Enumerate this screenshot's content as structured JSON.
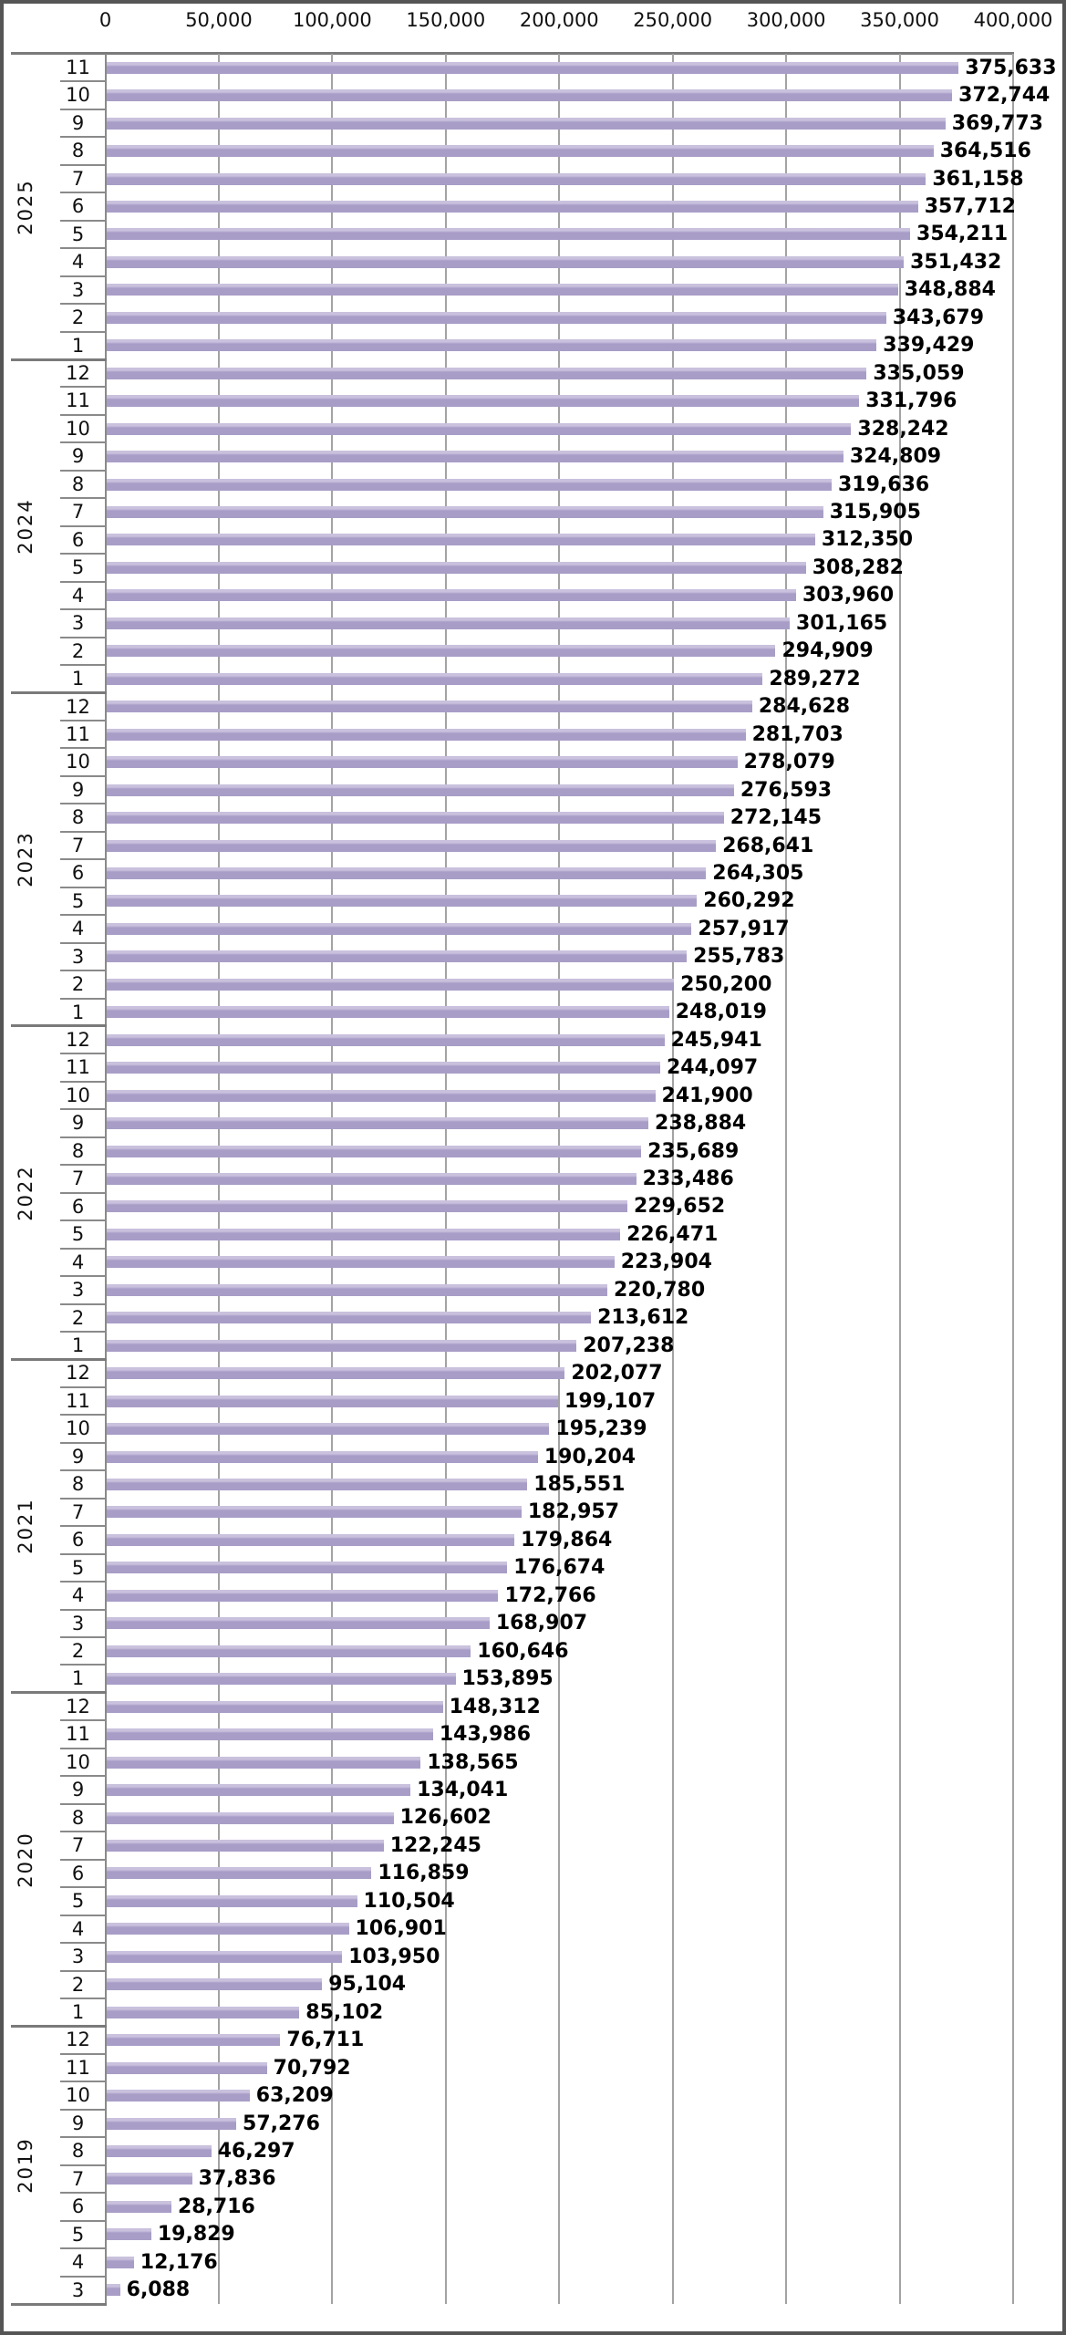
{
  "chart_data": {
    "type": "bar",
    "orientation": "horizontal",
    "title": "",
    "xlabel": "",
    "ylabel": "",
    "x_axis": {
      "position": "top",
      "min": 0,
      "max": 400000,
      "tick_step": 50000,
      "tick_labels": [
        "0",
        "50,000",
        "100,000",
        "150,000",
        "200,000",
        "250,000",
        "300,000",
        "350,000",
        "400,000"
      ],
      "grid": true
    },
    "y_axis": {
      "outer_level": "year",
      "inner_level": "month",
      "order": "newest-first"
    },
    "legend": "none",
    "bar_color": "#a89dc7",
    "gridline_color": "#a3a3a3",
    "frame_color": "#555555",
    "groups": [
      {
        "year": "2025",
        "rows": [
          {
            "month": "11",
            "value": 375633,
            "label": "375,633"
          },
          {
            "month": "10",
            "value": 372744,
            "label": "372,744"
          },
          {
            "month": "9",
            "value": 369773,
            "label": "369,773"
          },
          {
            "month": "8",
            "value": 364516,
            "label": "364,516"
          },
          {
            "month": "7",
            "value": 361158,
            "label": "361,158"
          },
          {
            "month": "6",
            "value": 357712,
            "label": "357,712"
          },
          {
            "month": "5",
            "value": 354211,
            "label": "354,211"
          },
          {
            "month": "4",
            "value": 351432,
            "label": "351,432"
          },
          {
            "month": "3",
            "value": 348884,
            "label": "348,884"
          },
          {
            "month": "2",
            "value": 343679,
            "label": "343,679"
          },
          {
            "month": "1",
            "value": 339429,
            "label": "339,429"
          }
        ]
      },
      {
        "year": "2024",
        "rows": [
          {
            "month": "12",
            "value": 335059,
            "label": "335,059"
          },
          {
            "month": "11",
            "value": 331796,
            "label": "331,796"
          },
          {
            "month": "10",
            "value": 328242,
            "label": "328,242"
          },
          {
            "month": "9",
            "value": 324809,
            "label": "324,809"
          },
          {
            "month": "8",
            "value": 319636,
            "label": "319,636"
          },
          {
            "month": "7",
            "value": 315905,
            "label": "315,905"
          },
          {
            "month": "6",
            "value": 312350,
            "label": "312,350"
          },
          {
            "month": "5",
            "value": 308282,
            "label": "308,282"
          },
          {
            "month": "4",
            "value": 303960,
            "label": "303,960"
          },
          {
            "month": "3",
            "value": 301165,
            "label": "301,165"
          },
          {
            "month": "2",
            "value": 294909,
            "label": "294,909"
          },
          {
            "month": "1",
            "value": 289272,
            "label": "289,272"
          }
        ]
      },
      {
        "year": "2023",
        "rows": [
          {
            "month": "12",
            "value": 284628,
            "label": "284,628"
          },
          {
            "month": "11",
            "value": 281703,
            "label": "281,703"
          },
          {
            "month": "10",
            "value": 278079,
            "label": "278,079"
          },
          {
            "month": "9",
            "value": 276593,
            "label": "276,593"
          },
          {
            "month": "8",
            "value": 272145,
            "label": "272,145"
          },
          {
            "month": "7",
            "value": 268641,
            "label": "268,641"
          },
          {
            "month": "6",
            "value": 264305,
            "label": "264,305"
          },
          {
            "month": "5",
            "value": 260292,
            "label": "260,292"
          },
          {
            "month": "4",
            "value": 257917,
            "label": "257,917"
          },
          {
            "month": "3",
            "value": 255783,
            "label": "255,783"
          },
          {
            "month": "2",
            "value": 250200,
            "label": "250,200"
          },
          {
            "month": "1",
            "value": 248019,
            "label": "248,019"
          }
        ]
      },
      {
        "year": "2022",
        "rows": [
          {
            "month": "12",
            "value": 245941,
            "label": "245,941"
          },
          {
            "month": "11",
            "value": 244097,
            "label": "244,097"
          },
          {
            "month": "10",
            "value": 241900,
            "label": "241,900"
          },
          {
            "month": "9",
            "value": 238884,
            "label": "238,884"
          },
          {
            "month": "8",
            "value": 235689,
            "label": "235,689"
          },
          {
            "month": "7",
            "value": 233486,
            "label": "233,486"
          },
          {
            "month": "6",
            "value": 229652,
            "label": "229,652"
          },
          {
            "month": "5",
            "value": 226471,
            "label": "226,471"
          },
          {
            "month": "4",
            "value": 223904,
            "label": "223,904"
          },
          {
            "month": "3",
            "value": 220780,
            "label": "220,780"
          },
          {
            "month": "2",
            "value": 213612,
            "label": "213,612"
          },
          {
            "month": "1",
            "value": 207238,
            "label": "207,238"
          }
        ]
      },
      {
        "year": "2021",
        "rows": [
          {
            "month": "12",
            "value": 202077,
            "label": "202,077"
          },
          {
            "month": "11",
            "value": 199107,
            "label": "199,107"
          },
          {
            "month": "10",
            "value": 195239,
            "label": "195,239"
          },
          {
            "month": "9",
            "value": 190204,
            "label": "190,204"
          },
          {
            "month": "8",
            "value": 185551,
            "label": "185,551"
          },
          {
            "month": "7",
            "value": 182957,
            "label": "182,957"
          },
          {
            "month": "6",
            "value": 179864,
            "label": "179,864"
          },
          {
            "month": "5",
            "value": 176674,
            "label": "176,674"
          },
          {
            "month": "4",
            "value": 172766,
            "label": "172,766"
          },
          {
            "month": "3",
            "value": 168907,
            "label": "168,907"
          },
          {
            "month": "2",
            "value": 160646,
            "label": "160,646"
          },
          {
            "month": "1",
            "value": 153895,
            "label": "153,895"
          }
        ]
      },
      {
        "year": "2020",
        "rows": [
          {
            "month": "12",
            "value": 148312,
            "label": "148,312"
          },
          {
            "month": "11",
            "value": 143986,
            "label": "143,986"
          },
          {
            "month": "10",
            "value": 138565,
            "label": "138,565"
          },
          {
            "month": "9",
            "value": 134041,
            "label": "134,041"
          },
          {
            "month": "8",
            "value": 126602,
            "label": "126,602"
          },
          {
            "month": "7",
            "value": 122245,
            "label": "122,245"
          },
          {
            "month": "6",
            "value": 116859,
            "label": "116,859"
          },
          {
            "month": "5",
            "value": 110504,
            "label": "110,504"
          },
          {
            "month": "4",
            "value": 106901,
            "label": "106,901"
          },
          {
            "month": "3",
            "value": 103950,
            "label": "103,950"
          },
          {
            "month": "2",
            "value": 95104,
            "label": "95,104"
          },
          {
            "month": "1",
            "value": 85102,
            "label": "85,102"
          }
        ]
      },
      {
        "year": "2019",
        "rows": [
          {
            "month": "12",
            "value": 76711,
            "label": "76,711"
          },
          {
            "month": "11",
            "value": 70792,
            "label": "70,792"
          },
          {
            "month": "10",
            "value": 63209,
            "label": "63,209"
          },
          {
            "month": "9",
            "value": 57276,
            "label": "57,276"
          },
          {
            "month": "8",
            "value": 46297,
            "label": "46,297"
          },
          {
            "month": "7",
            "value": 37836,
            "label": "37,836"
          },
          {
            "month": "6",
            "value": 28716,
            "label": "28,716"
          },
          {
            "month": "5",
            "value": 19829,
            "label": "19,829"
          },
          {
            "month": "4",
            "value": 12176,
            "label": "12,176"
          },
          {
            "month": "3",
            "value": 6088,
            "label": "6,088"
          }
        ]
      }
    ]
  }
}
